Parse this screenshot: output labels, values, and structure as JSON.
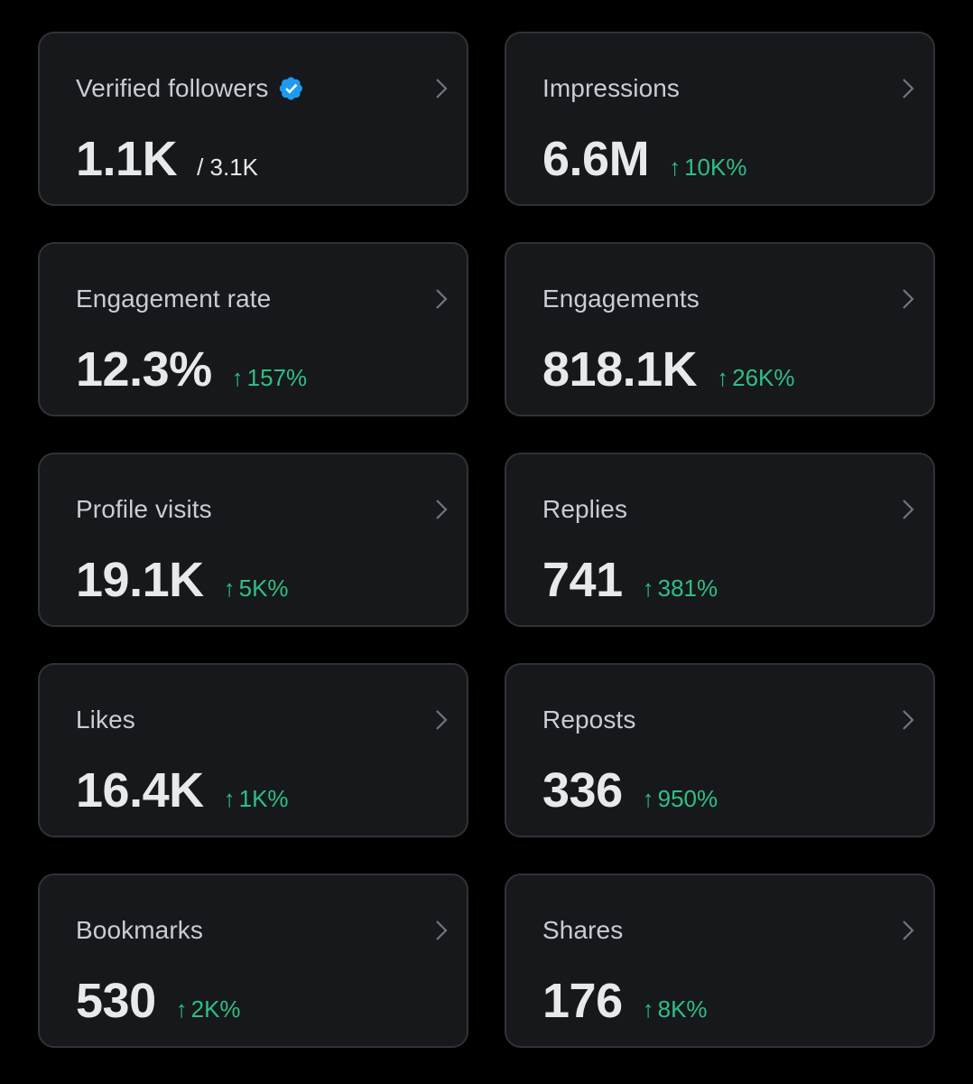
{
  "colors": {
    "background": "#000000",
    "card": "#16181c",
    "border": "#2f3336",
    "label": "#c9cdd1",
    "value": "#e7e9ea",
    "positive": "#2fbf85",
    "verified": "#1d9bf0"
  },
  "cards": [
    {
      "label": "Verified followers",
      "value": "1.1K",
      "total": "/ 3.1K",
      "icon": "verified-badge-icon"
    },
    {
      "label": "Impressions",
      "value": "6.6M",
      "change": "10K%"
    },
    {
      "label": "Engagement rate",
      "value": "12.3%",
      "change": "157%"
    },
    {
      "label": "Engagements",
      "value": "818.1K",
      "change": "26K%"
    },
    {
      "label": "Profile visits",
      "value": "19.1K",
      "change": "5K%"
    },
    {
      "label": "Replies",
      "value": "741",
      "change": "381%"
    },
    {
      "label": "Likes",
      "value": "16.4K",
      "change": "1K%"
    },
    {
      "label": "Reposts",
      "value": "336",
      "change": "950%"
    },
    {
      "label": "Bookmarks",
      "value": "530",
      "change": "2K%"
    },
    {
      "label": "Shares",
      "value": "176",
      "change": "8K%"
    }
  ],
  "arrow_glyph": "↑"
}
